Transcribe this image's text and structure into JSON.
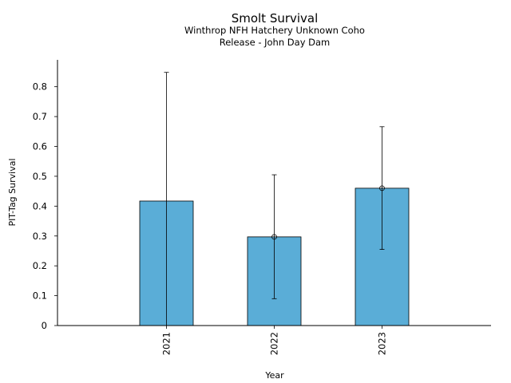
{
  "chart_data": {
    "type": "bar",
    "title": "Smolt Survival",
    "subtitle_lines": [
      "Winthrop NFH Hatchery Unknown Coho",
      "Release - John Day Dam"
    ],
    "xlabel": "Year",
    "ylabel": "PIT-Tag Survival",
    "categories": [
      "2021",
      "2022",
      "2023"
    ],
    "values": [
      0.417,
      0.297,
      0.46
    ],
    "error_low": [
      0.0,
      0.09,
      0.255
    ],
    "error_high": [
      0.848,
      0.505,
      0.666
    ],
    "point_markers": [
      false,
      true,
      true
    ],
    "ylim": [
      0,
      0.89
    ],
    "yticks": [
      0,
      0.1,
      0.2,
      0.3,
      0.4,
      0.5,
      0.6,
      0.7,
      0.8
    ],
    "ytick_labels": [
      "0",
      "0.1",
      "0.2",
      "0.3",
      "0.4",
      "0.5",
      "0.6",
      "0.7",
      "0.8"
    ],
    "bar_color": "#5aadd7",
    "grid": false,
    "legend": "none"
  }
}
